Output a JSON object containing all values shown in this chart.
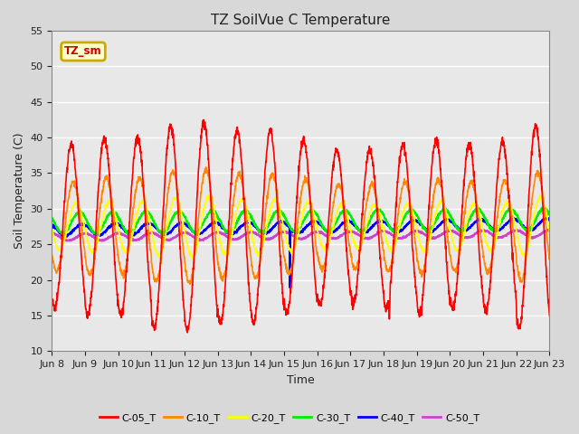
{
  "title": "TZ SoilVue C Temperature",
  "xlabel": "Time",
  "ylabel": "Soil Temperature (C)",
  "ylim": [
    10,
    55
  ],
  "yticks": [
    10,
    15,
    20,
    25,
    30,
    35,
    40,
    45,
    50,
    55
  ],
  "x_labels": [
    "Jun 8",
    "Jun 9",
    "Jun 10",
    "Jun 11",
    "Jun 12",
    "Jun 13",
    "Jun 14",
    "Jun 15",
    "Jun 16",
    "Jun 17",
    "Jun 18",
    "Jun 19",
    "Jun 20",
    "Jun 21",
    "Jun 22",
    "Jun 23"
  ],
  "fig_bg_color": "#d8d8d8",
  "plot_bg_color": "#e8e8e8",
  "grid_color": "#ffffff",
  "legend_label": "TZ_sm",
  "legend_bg": "#ffffcc",
  "legend_border": "#ccaa00",
  "series": {
    "C-05_T": {
      "color": "#ff0000",
      "lw": 1.2
    },
    "C-10_T": {
      "color": "#ff8800",
      "lw": 1.2
    },
    "C-20_T": {
      "color": "#ffff00",
      "lw": 1.2
    },
    "C-30_T": {
      "color": "#00ee00",
      "lw": 1.5
    },
    "C-40_T": {
      "color": "#0000ff",
      "lw": 1.5
    },
    "C-50_T": {
      "color": "#cc44cc",
      "lw": 1.5
    }
  },
  "n_days": 15,
  "ppd": 144,
  "amp_05": 13.5,
  "base_05": 27.5,
  "amp_10": 8.0,
  "base_10": 27.5,
  "amp_20": 4.5,
  "base_20": 27.5,
  "amp_30": 1.5,
  "base_30": 28.0,
  "amp_40": 0.8,
  "base_40": 27.0,
  "amp_50": 0.5,
  "base_50": 26.0
}
